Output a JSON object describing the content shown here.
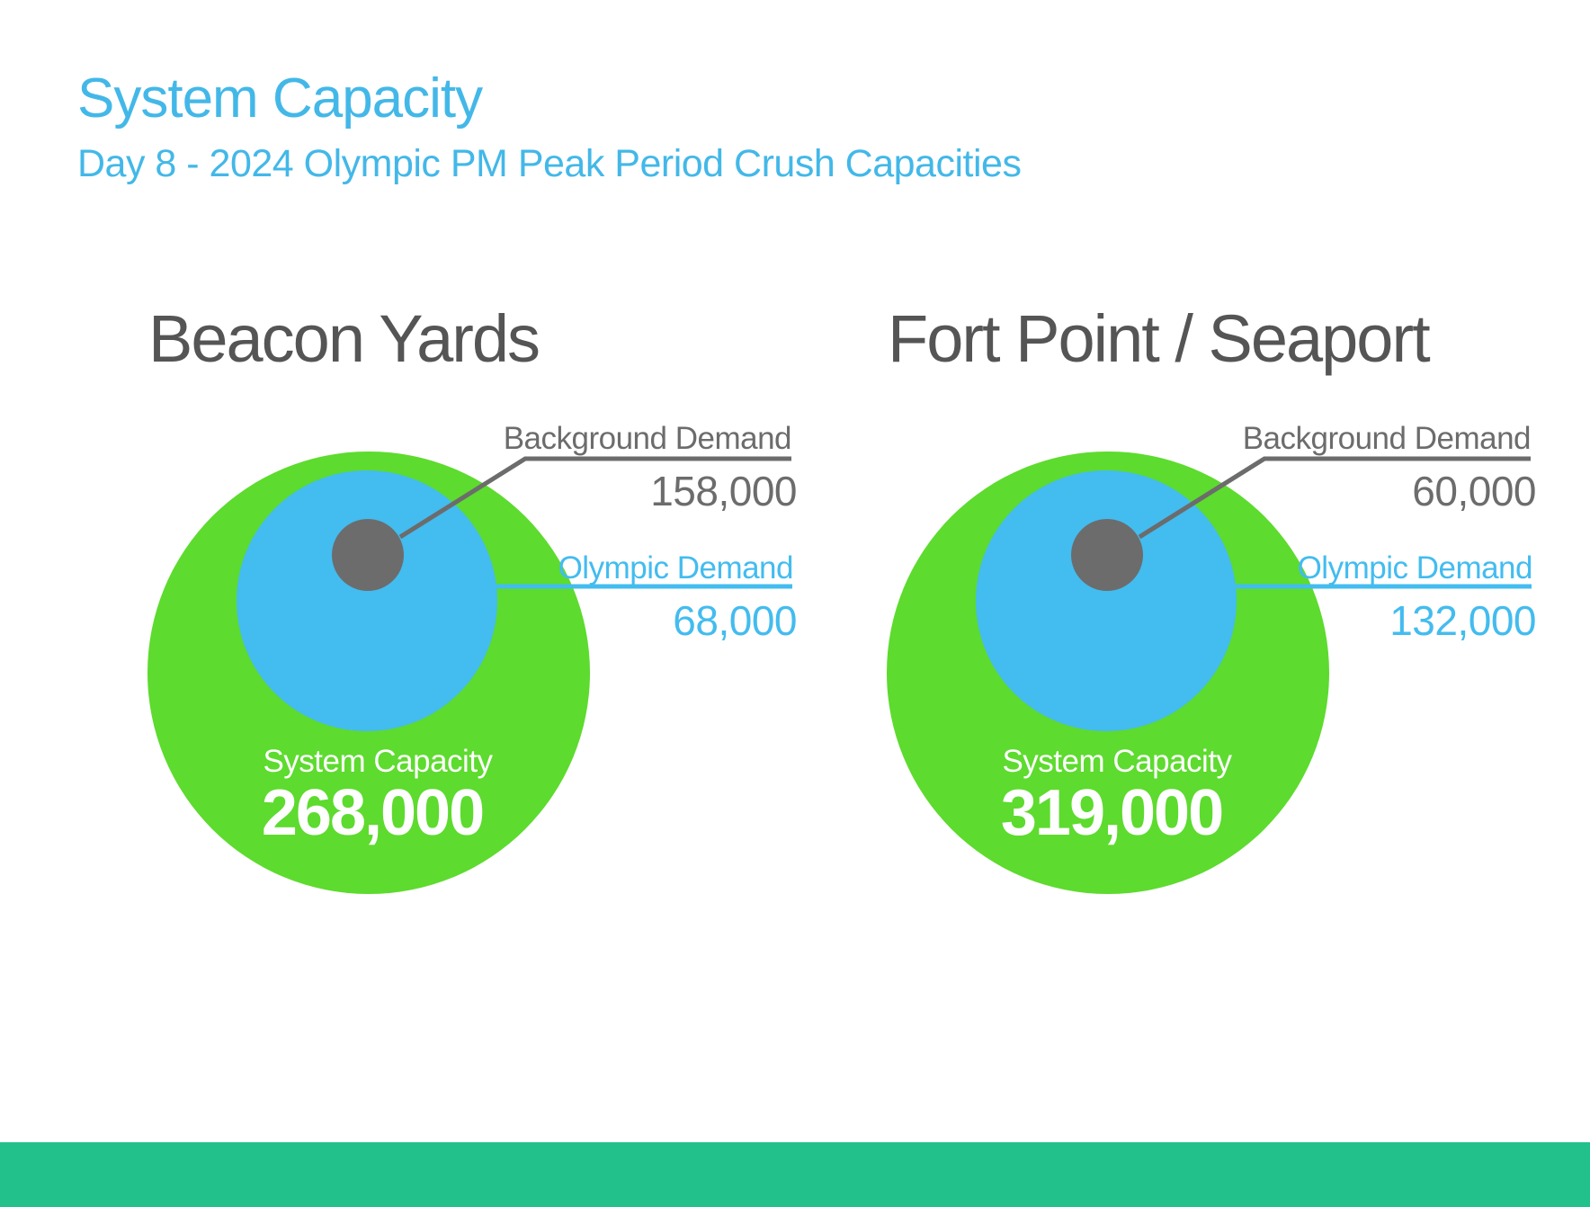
{
  "page": {
    "title": "System Capacity",
    "subtitle": "Day 8 - 2024 Olympic PM Peak Period Crush Capacities"
  },
  "colors": {
    "title": "#43b8e8",
    "capacity": "#5ddb2e",
    "olympic": "#43bcef",
    "background": "#6c6c6c",
    "heading": "#555555",
    "footer": "#22c18c",
    "capacity_text": "#ffffff"
  },
  "chart_data": [
    {
      "type": "bubble",
      "title": "Beacon Yards",
      "series": [
        {
          "name": "Background Demand",
          "label": "Background Demand",
          "value": 158000,
          "display": "158,000"
        },
        {
          "name": "Olympic Demand",
          "label": "Olympic  Demand",
          "value": 68000,
          "display": "68,000"
        },
        {
          "name": "System Capacity",
          "label": "System Capacity",
          "value": 268000,
          "display": "268,000"
        }
      ]
    },
    {
      "type": "bubble",
      "title": "Fort Point / Seaport",
      "series": [
        {
          "name": "Background Demand",
          "label": "Background Demand",
          "value": 60000,
          "display": "60,000"
        },
        {
          "name": "Olympic Demand",
          "label": "Olympic Demand",
          "value": 132000,
          "display": "132,000"
        },
        {
          "name": "System Capacity",
          "label": "System Capacity",
          "value": 319000,
          "display": "319,000"
        }
      ]
    }
  ]
}
